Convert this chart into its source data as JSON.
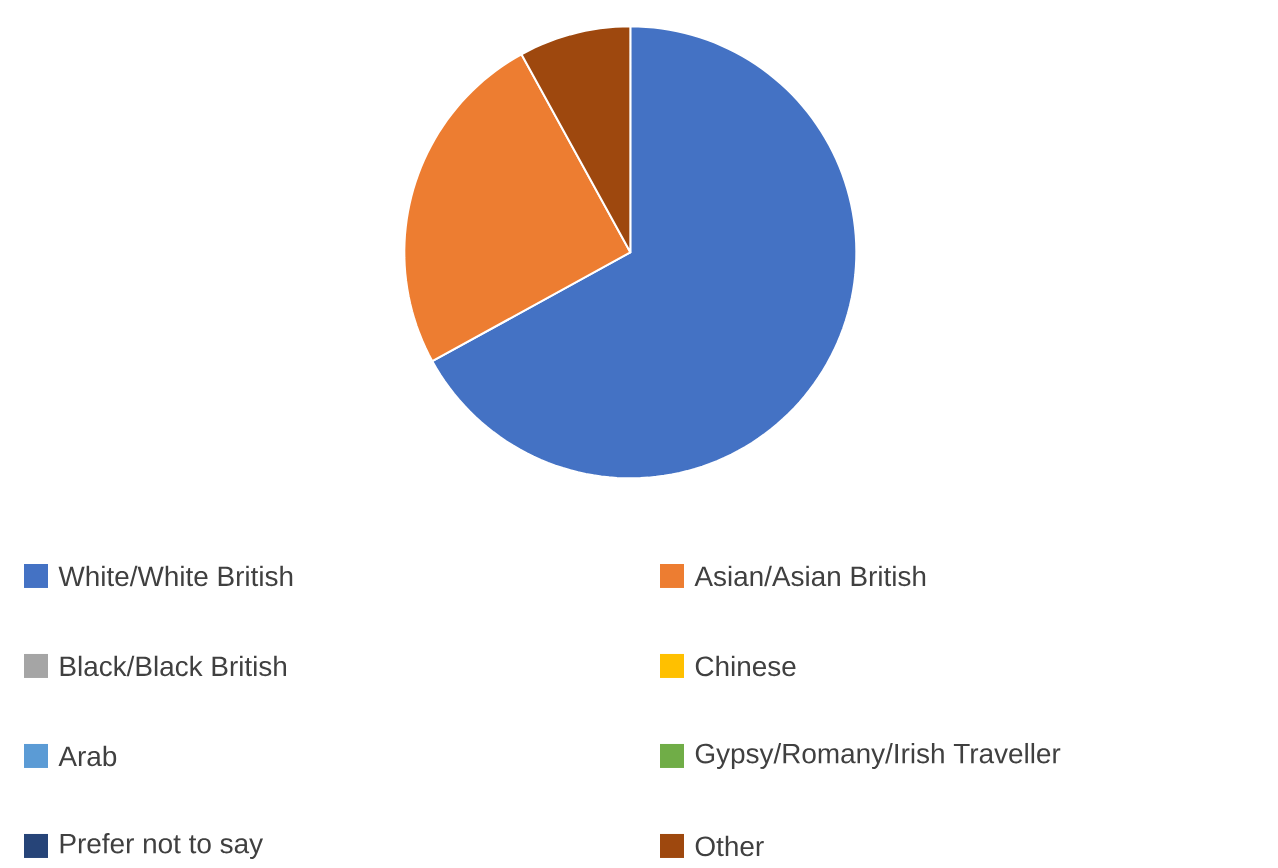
{
  "chart_data": {
    "type": "pie",
    "categories": [
      "White/White British",
      "Asian/Asian British",
      "Black/Black British",
      "Chinese",
      "Arab",
      "Gypsy/Romany/Irish Traveller",
      "Prefer not to say",
      "Other"
    ],
    "values": [
      67,
      25,
      0,
      0,
      0,
      0,
      0,
      8
    ],
    "colors": [
      "#4472c4",
      "#ed7d31",
      "#a5a5a5",
      "#ffc000",
      "#5b9bd5",
      "#70ad47",
      "#264478",
      "#9e480e"
    ],
    "legend": "bottom"
  }
}
